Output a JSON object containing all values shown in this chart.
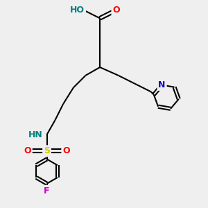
{
  "bg_color": "#efefef",
  "atom_colors": {
    "C": "#000000",
    "O": "#ff0000",
    "N": "#0000cc",
    "S": "#cccc00",
    "F": "#cc00cc",
    "H_O": "#008080",
    "H_N": "#008080"
  },
  "bond_color": "#000000",
  "bond_width": 1.5,
  "font_size": 9,
  "figsize": [
    3.0,
    3.0
  ],
  "dpi": 100,
  "xlim": [
    0,
    10
  ],
  "ylim": [
    0,
    10
  ]
}
